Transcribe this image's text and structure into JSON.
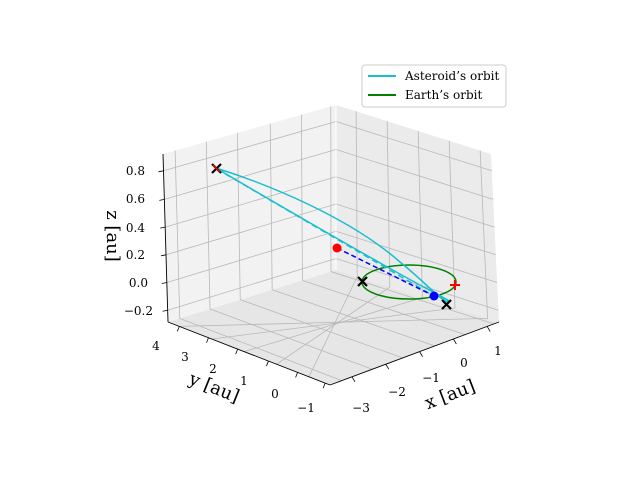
{
  "chart_data": {
    "type": "line3d",
    "xlabel": "x [au]",
    "ylabel": "y [au]",
    "zlabel": "z [au]",
    "x_ticks": [
      "1",
      "0",
      "−1",
      "−2",
      "−3"
    ],
    "y_ticks": [
      "4",
      "3",
      "2",
      "1",
      "0",
      "−1"
    ],
    "z_ticks": [
      "0.8",
      "0.6",
      "0.4",
      "0.2",
      "0.0",
      "−0.2"
    ],
    "grid": true,
    "legend_position": "top-right",
    "legend": [
      {
        "label": "Asteroid’s orbit",
        "color": "#17becf"
      },
      {
        "label": "Earth’s orbit",
        "color": "#008000"
      }
    ],
    "colors": {
      "asteroid": "#17becf",
      "earth": "#008000",
      "transfer": "#0000ff",
      "marker_red": "#ff0000",
      "marker_black": "#000000"
    },
    "markers": [
      {
        "type": "dot",
        "color": "red"
      },
      {
        "type": "dot",
        "color": "blue"
      },
      {
        "type": "cross",
        "color": "black"
      },
      {
        "type": "cross",
        "color": "black"
      },
      {
        "type": "cross",
        "color": "black"
      },
      {
        "type": "plus",
        "color": "red"
      }
    ]
  }
}
